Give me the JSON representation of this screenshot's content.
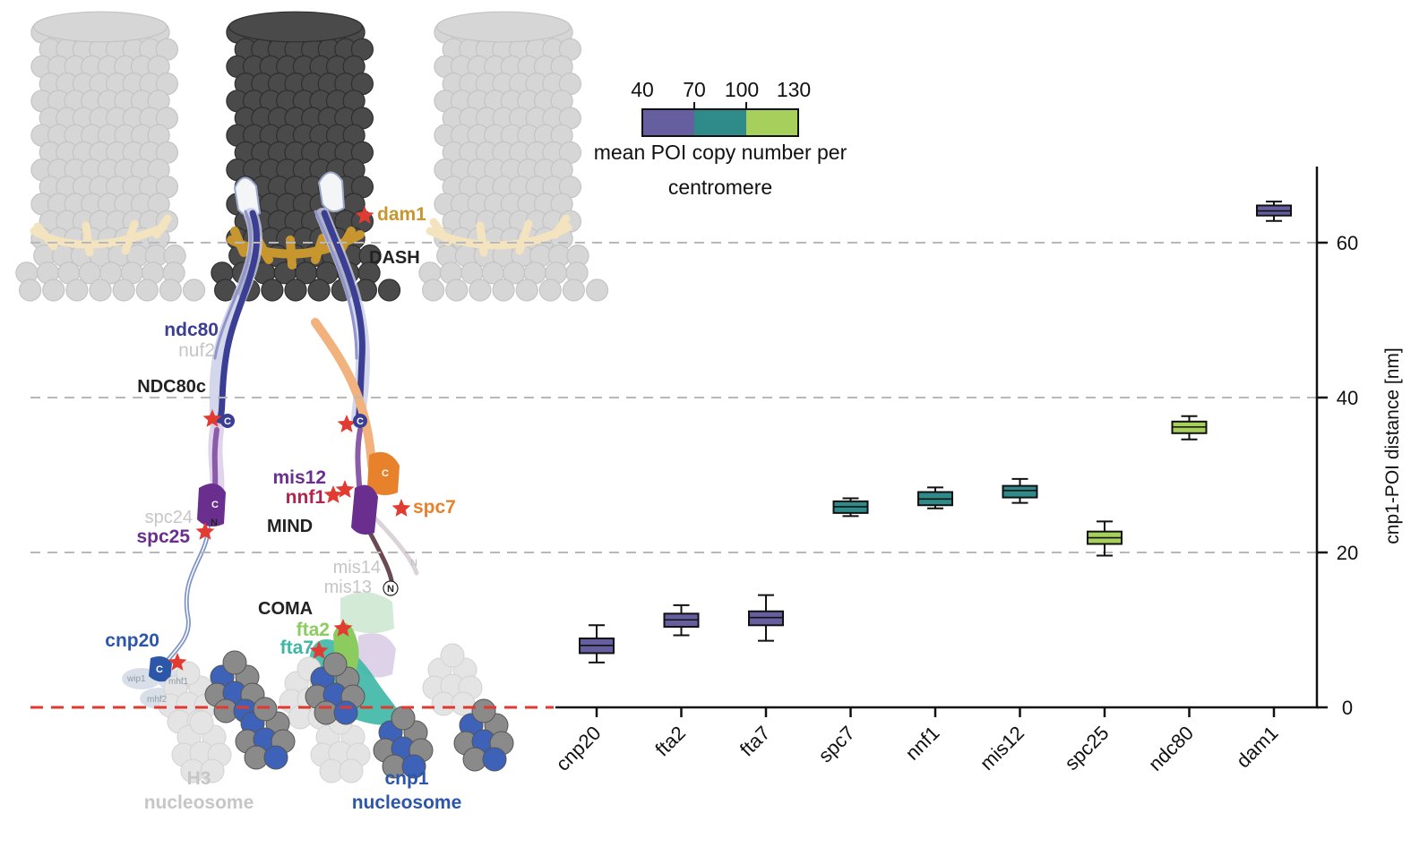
{
  "chart_data": {
    "type": "box",
    "categories": [
      "cnp20",
      "fta2",
      "fta7",
      "spc7",
      "nnf1",
      "mis12",
      "spc25",
      "ndc80",
      "dam1"
    ],
    "boxes": [
      {
        "category": "cnp20",
        "whisker_low": 5.8,
        "q1": 7.0,
        "median": 8.0,
        "q3": 8.9,
        "whisker_high": 10.6,
        "copy_bin": "40-70"
      },
      {
        "category": "fta2",
        "whisker_low": 9.3,
        "q1": 10.4,
        "median": 11.3,
        "q3": 12.1,
        "whisker_high": 13.2,
        "copy_bin": "40-70"
      },
      {
        "category": "fta7",
        "whisker_low": 8.6,
        "q1": 10.6,
        "median": 11.6,
        "q3": 12.4,
        "whisker_high": 14.5,
        "copy_bin": "40-70"
      },
      {
        "category": "spc7",
        "whisker_low": 24.7,
        "q1": 25.1,
        "median": 25.9,
        "q3": 26.6,
        "whisker_high": 27.0,
        "copy_bin": "70-100"
      },
      {
        "category": "nnf1",
        "whisker_low": 25.7,
        "q1": 26.1,
        "median": 26.9,
        "q3": 27.8,
        "whisker_high": 28.4,
        "copy_bin": "70-100"
      },
      {
        "category": "mis12",
        "whisker_low": 26.4,
        "q1": 27.1,
        "median": 28.0,
        "q3": 28.6,
        "whisker_high": 29.5,
        "copy_bin": "70-100"
      },
      {
        "category": "spc25",
        "whisker_low": 19.6,
        "q1": 21.1,
        "median": 21.9,
        "q3": 22.7,
        "whisker_high": 24.0,
        "copy_bin": "100-130"
      },
      {
        "category": "ndc80",
        "whisker_low": 34.6,
        "q1": 35.4,
        "median": 36.2,
        "q3": 36.9,
        "whisker_high": 37.6,
        "copy_bin": "100-130"
      },
      {
        "category": "dam1",
        "whisker_low": 62.8,
        "q1": 63.5,
        "median": 64.1,
        "q3": 64.8,
        "whisker_high": 65.3,
        "copy_bin": "40-70"
      }
    ],
    "ylabel": "cnp1-POI distance [nm]",
    "ylim": [
      0,
      70
    ],
    "yticks": [
      0,
      20,
      40,
      60
    ],
    "y_axis_side": "right",
    "reference_lines": [
      20,
      40,
      60
    ],
    "zero_line_color": "#e03a2f",
    "colorbar": {
      "tick_labels": [
        "40",
        "70",
        "100",
        "130"
      ],
      "label_line1": "mean POI copy number per",
      "label_line2": "centromere",
      "bins": [
        {
          "range": "40-70",
          "color": "#655fa0"
        },
        {
          "range": "70-100",
          "color": "#2e8b8a"
        },
        {
          "range": "100-130",
          "color": "#a6cf5b"
        }
      ]
    }
  },
  "diagram": {
    "labels": {
      "dam1": "dam1",
      "dash": "DASH",
      "ndc80": "ndc80",
      "nuf2": "nuf2",
      "ndc80c": "NDC80c",
      "spc24": "spc24",
      "spc25": "spc25",
      "mis12": "mis12",
      "nnf1": "nnf1",
      "mind": "MIND",
      "spc7": "spc7",
      "mis14": "mis14",
      "mis13": "mis13",
      "coma": "COMA",
      "fta2": "fta2",
      "fta7": "fta7",
      "cnp20": "cnp20",
      "wip1": "wip1",
      "mhf1": "mhf1",
      "mhf2": "mhf2",
      "h3_line1": "H3",
      "h3_line2": "nucleosome",
      "cnp1_line1": "cnp1",
      "cnp1_line2": "nucleosome",
      "c": "C",
      "n": "N"
    },
    "colors": {
      "marker_star": "#e23b32",
      "microtubule_dark": "#4a4a4a",
      "microtubule_light": "#d6d6d6",
      "dash_gold": "#c8962e",
      "dash_pale": "#f3e3bf",
      "ndc80_blue": "#3b3f93",
      "mis12_purple": "#6a2f8e",
      "nnf1_red": "#b0244e",
      "spc7_orange": "#e8812b",
      "fta2_green": "#8ccc5e",
      "fta7_teal": "#3cb7a5",
      "cnp20_blue": "#2c56a7",
      "grey_label": "#bdbdbd",
      "histone_blue": "#3e62b8"
    }
  }
}
